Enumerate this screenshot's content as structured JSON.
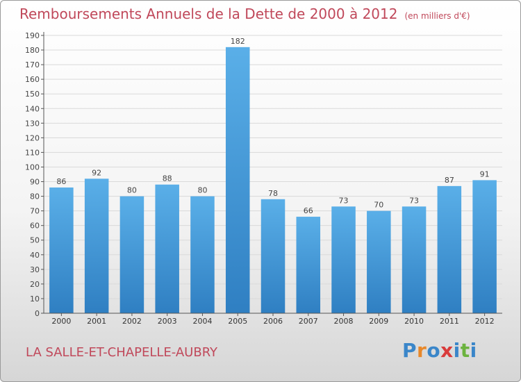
{
  "header": {
    "title": "Remboursements Annuels de la Dette de 2000 à 2012",
    "unit": "(en milliers d'€)"
  },
  "footer": {
    "commune": "LA SALLE-ET-CHAPELLE-AUBRY",
    "brand": "Proxiti",
    "brand_letter_colors": [
      "#3a86c9",
      "#e8882a",
      "#3a86c9",
      "#d93b3b",
      "#3a86c9",
      "#6cb33f",
      "#3a86c9"
    ]
  },
  "colors": {
    "title": "#c0485a",
    "bar_light": "#5aafe8",
    "bar_dark": "#2f7fc2",
    "grid": "#d9d9d9",
    "axis": "#555555"
  },
  "chart_data": {
    "type": "bar",
    "categories": [
      "2000",
      "2001",
      "2002",
      "2003",
      "2004",
      "2005",
      "2006",
      "2007",
      "2008",
      "2009",
      "2010",
      "2011",
      "2012"
    ],
    "values": [
      86,
      92,
      80,
      88,
      80,
      182,
      78,
      66,
      73,
      70,
      73,
      87,
      91
    ],
    "ylim": [
      0,
      190
    ],
    "ytick_step": 10,
    "grid": true,
    "xlabel": "",
    "ylabel": ""
  }
}
